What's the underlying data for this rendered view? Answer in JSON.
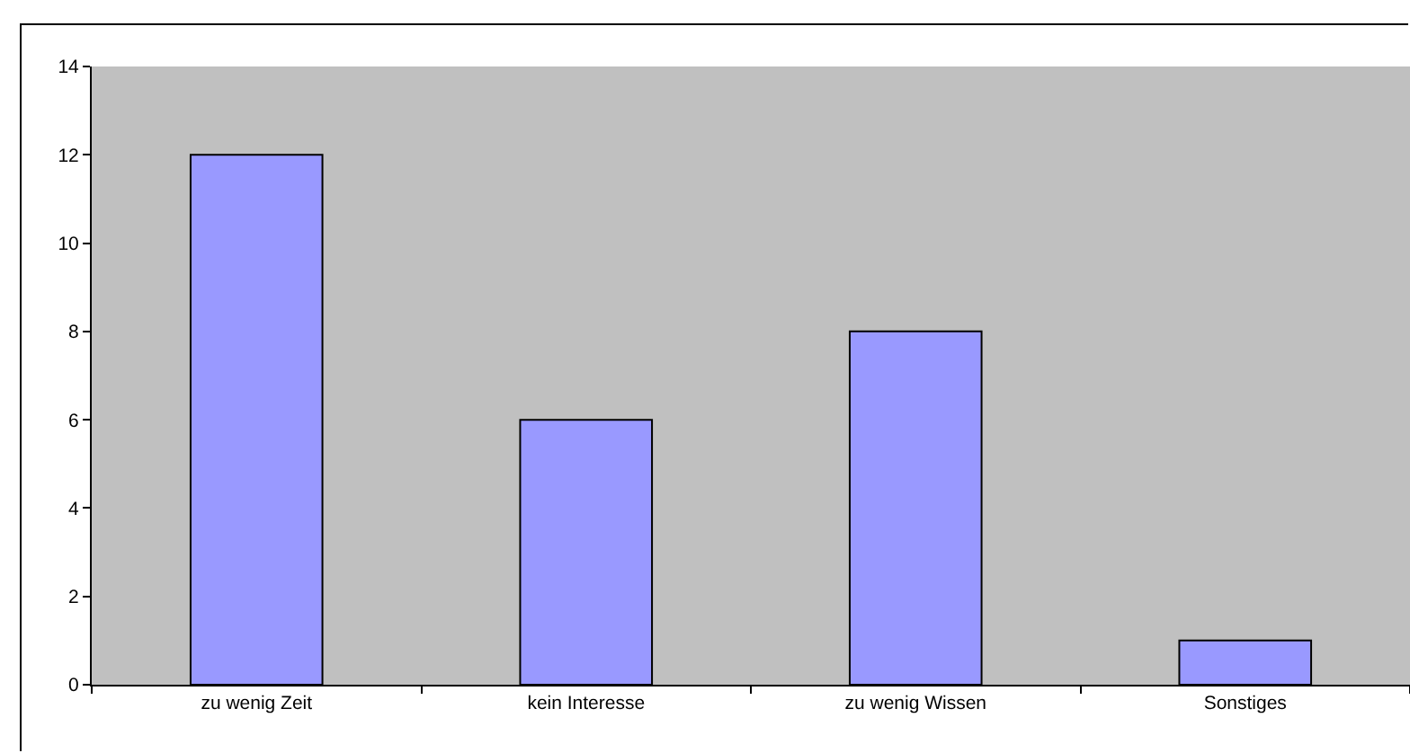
{
  "chart_data": {
    "type": "bar",
    "categories": [
      "zu wenig Zeit",
      "kein Interesse",
      "zu wenig Wissen",
      "Sonstiges"
    ],
    "values": [
      12,
      6,
      8,
      1
    ],
    "color": "#9999ff",
    "ylim": [
      0,
      14
    ],
    "yticks": [
      0,
      2,
      4,
      6,
      8,
      10,
      12,
      14
    ],
    "grid": false
  }
}
